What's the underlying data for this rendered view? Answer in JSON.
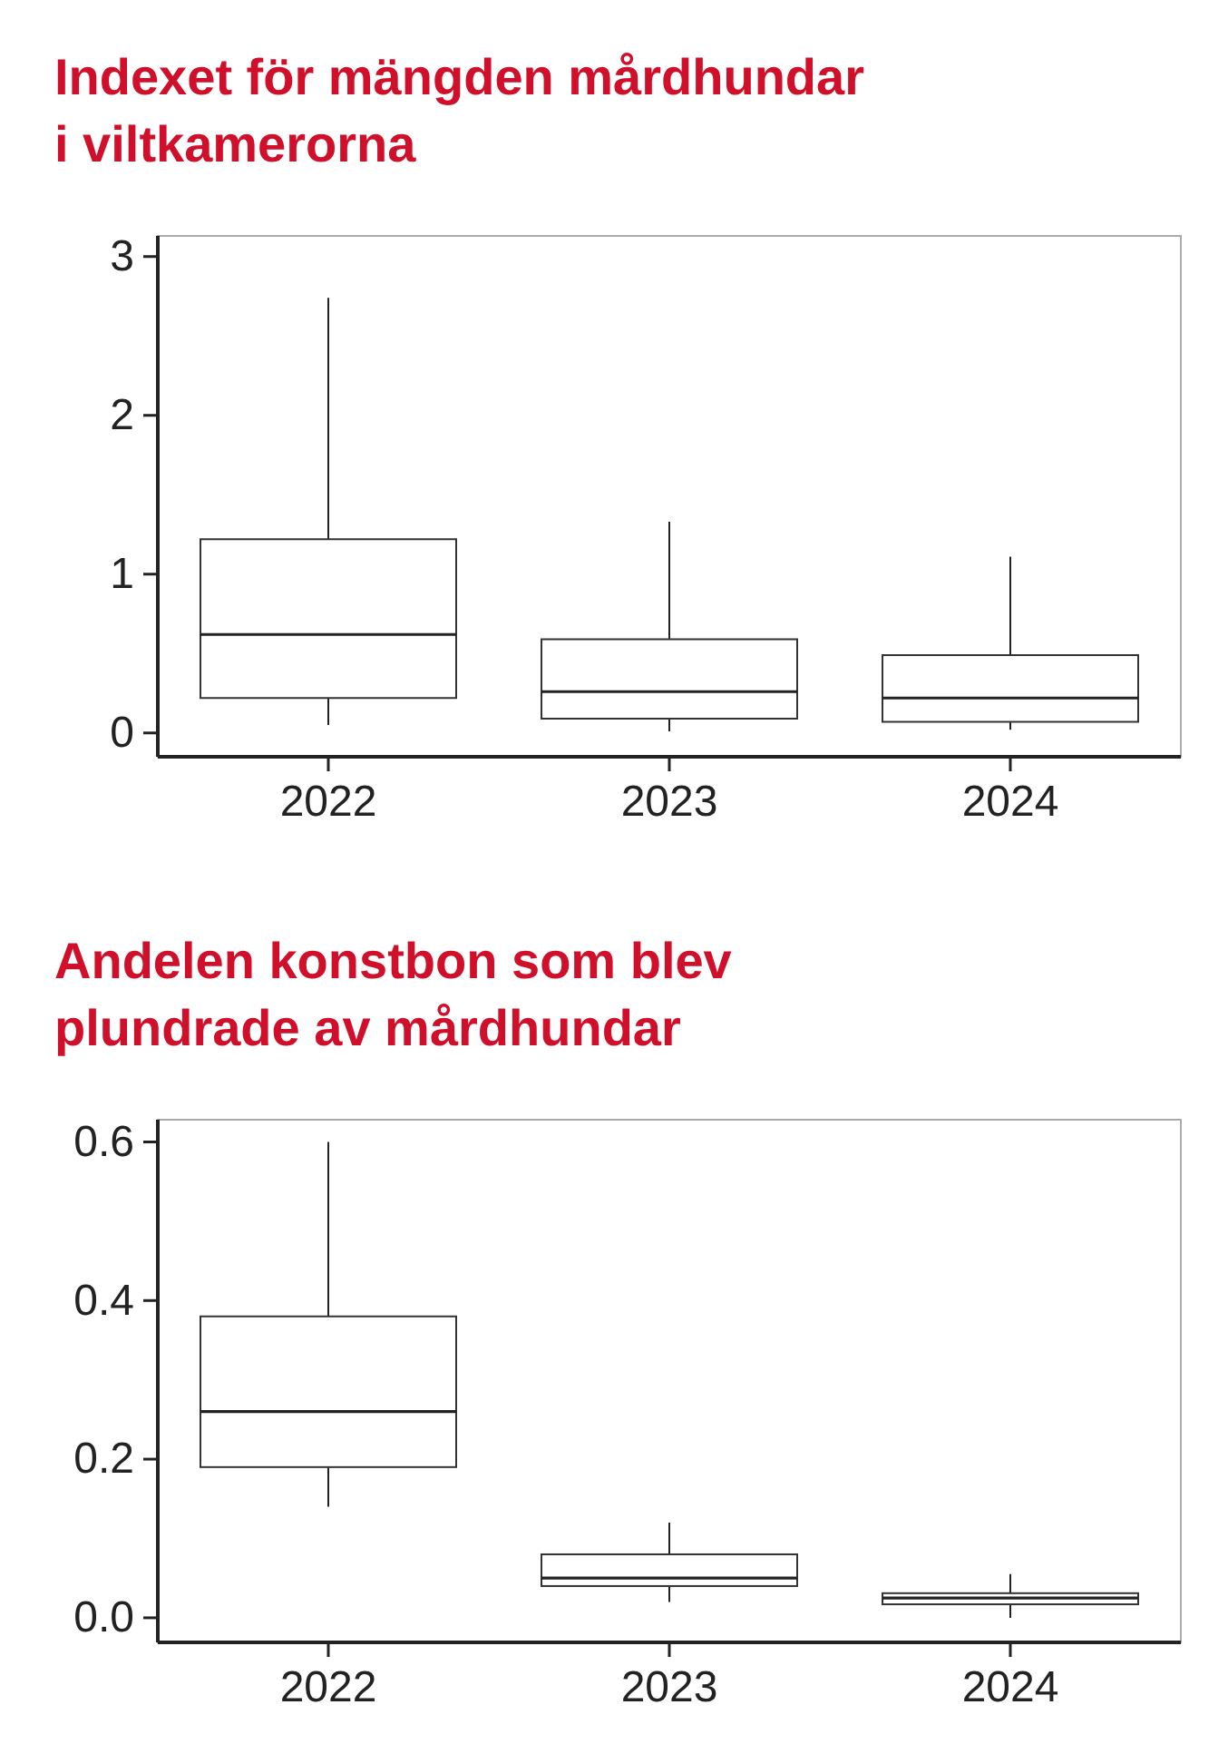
{
  "chart_data": [
    {
      "type": "box",
      "title": "Indexet för mängden mårdhundar\ni viltkamerorna",
      "categories": [
        "2022",
        "2023",
        "2024"
      ],
      "boxes": [
        {
          "low": 0.05,
          "q1": 0.22,
          "median": 0.62,
          "q3": 1.22,
          "high": 2.74
        },
        {
          "low": 0.01,
          "q1": 0.09,
          "median": 0.26,
          "q3": 0.59,
          "high": 1.33
        },
        {
          "low": 0.02,
          "q1": 0.07,
          "median": 0.22,
          "q3": 0.49,
          "high": 1.11
        }
      ],
      "ylim": [
        -0.15,
        3.13
      ],
      "yticks": [
        0,
        1,
        2,
        3
      ]
    },
    {
      "type": "box",
      "title": "Andelen konstbon som blev\nplundrade av mårdhundar",
      "categories": [
        "2022",
        "2023",
        "2024"
      ],
      "boxes": [
        {
          "low": 0.14,
          "q1": 0.19,
          "median": 0.26,
          "q3": 0.38,
          "high": 0.6
        },
        {
          "low": 0.02,
          "q1": 0.04,
          "median": 0.05,
          "q3": 0.08,
          "high": 0.12
        },
        {
          "low": 0.0,
          "q1": 0.017,
          "median": 0.025,
          "q3": 0.031,
          "high": 0.055
        }
      ],
      "ylim": [
        -0.031,
        0.628
      ],
      "yticks": [
        {
          "value": 0,
          "label": "0.0"
        },
        {
          "value": 0.2,
          "label": "0.2"
        },
        {
          "value": 0.4,
          "label": "0.4"
        },
        {
          "value": 0.6,
          "label": "0.6"
        }
      ]
    }
  ]
}
